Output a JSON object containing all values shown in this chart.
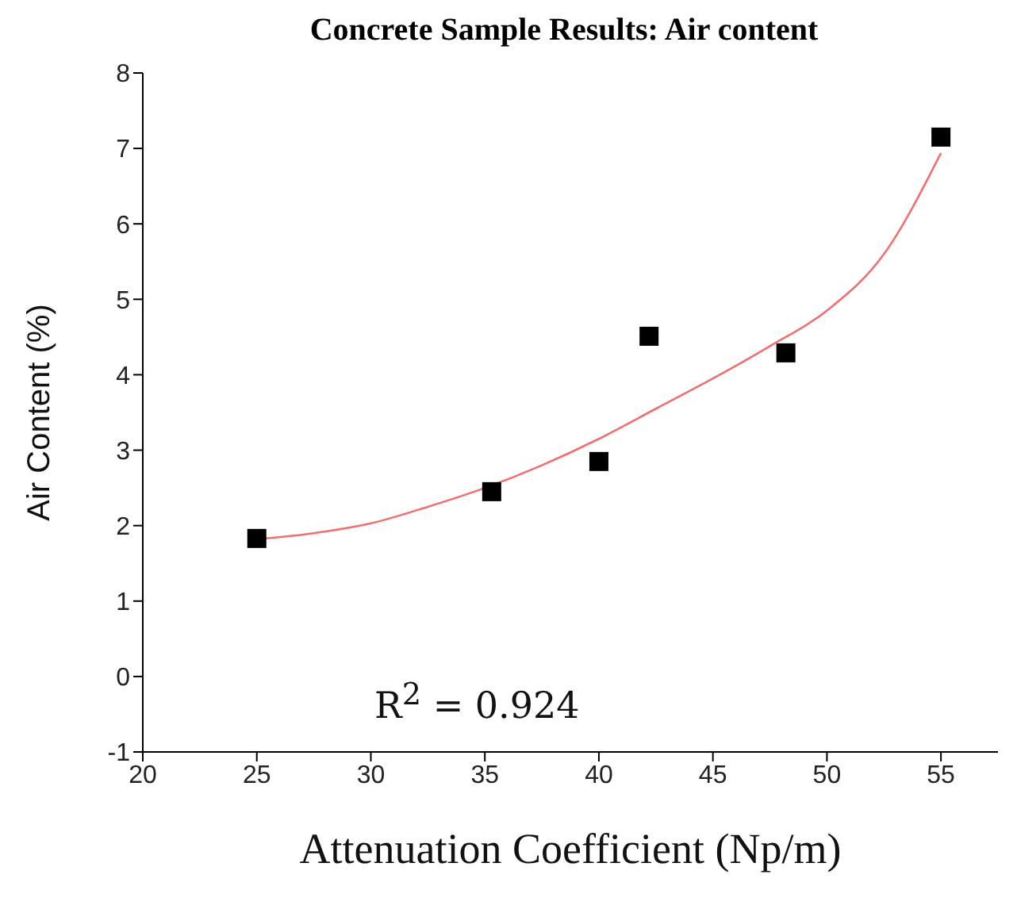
{
  "chart_data": {
    "type": "scatter",
    "title": "Concrete Sample Results: Air content",
    "xlabel": "Attenuation Coefficient (Np/m)",
    "ylabel": "Air Content (%)",
    "xlim": [
      20,
      57.5
    ],
    "xticks": [
      20,
      25,
      30,
      35,
      40,
      45,
      50,
      55
    ],
    "ylim": [
      -1,
      8
    ],
    "yticks": [
      -1,
      0,
      1,
      2,
      3,
      4,
      5,
      6,
      7,
      8
    ],
    "marker": "square",
    "grid": false,
    "annotations": [
      "R$^{2}$ = 0.924"
    ],
    "series": [
      {
        "color": "#000000",
        "x": [
          25,
          35.3,
          40,
          42.2,
          48.2,
          55
        ],
        "values": [
          1.83,
          2.45,
          2.85,
          4.51,
          4.29,
          7.15
        ]
      },
      {
        "type": "line",
        "color": "#f07070",
        "marker": "none",
        "x": [
          25,
          27.5,
          30,
          32.5,
          35,
          37.5,
          40,
          42.5,
          45,
          47.5,
          50,
          52.5,
          55
        ],
        "values": [
          1.82,
          1.9,
          2.03,
          2.25,
          2.5,
          2.8,
          3.15,
          3.55,
          3.95,
          4.38,
          4.85,
          5.6,
          6.94
        ]
      }
    ]
  }
}
